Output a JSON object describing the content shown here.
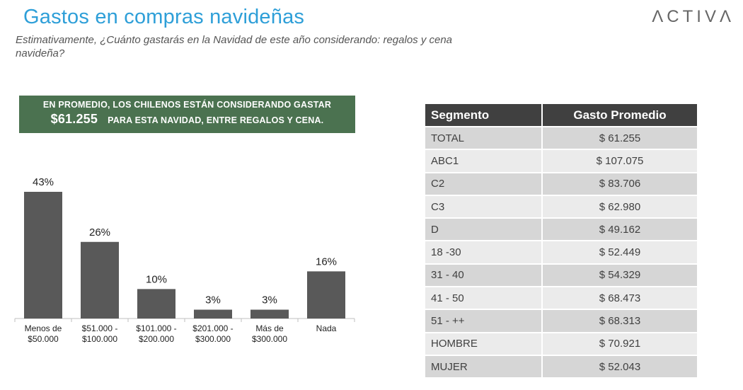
{
  "header": {
    "title": "Gastos en compras navideñas",
    "logo": "ΛCTIVΛ",
    "subtitle": "Estimativamente, ¿Cuánto gastarás en la Navidad de este año considerando: regalos y cena navideña?"
  },
  "banner": {
    "line1": "EN PROMEDIO, LOS CHILENOS ESTÁN CONSIDERANDO GASTAR",
    "amount": "$61.255",
    "line2": "PARA ESTA NAVIDAD, ENTRE REGALOS Y CENA."
  },
  "chart_data": {
    "type": "bar",
    "categories": [
      [
        "Menos de",
        "$50.000"
      ],
      [
        "$51.000 -",
        "$100.000"
      ],
      [
        "$101.000 -",
        "$200.000"
      ],
      [
        "$201.000 -",
        "$300.000"
      ],
      [
        "Más de",
        "$300.000"
      ],
      [
        "Nada"
      ]
    ],
    "values": [
      43,
      26,
      10,
      3,
      3,
      16
    ],
    "value_labels": [
      "43%",
      "26%",
      "10%",
      "3%",
      "3%",
      "16%"
    ],
    "unit": "%",
    "ylim": [
      0,
      43
    ],
    "bar_color": "#595959",
    "grid": false,
    "legend": "none"
  },
  "table": {
    "headers": [
      "Segmento",
      "Gasto Promedio"
    ],
    "rows": [
      [
        "TOTAL",
        "$ 61.255"
      ],
      [
        "ABC1",
        "$ 107.075"
      ],
      [
        "C2",
        "$ 83.706"
      ],
      [
        "C3",
        "$ 62.980"
      ],
      [
        "D",
        "$ 49.162"
      ],
      [
        "18 -30",
        "$ 52.449"
      ],
      [
        "31 - 40",
        "$ 54.329"
      ],
      [
        "41 - 50",
        "$ 68.473"
      ],
      [
        "51 - ++",
        "$ 68.313"
      ],
      [
        "HOMBRE",
        "$ 70.921"
      ],
      [
        "MUJER",
        "$ 52.043"
      ]
    ]
  },
  "colors": {
    "title": "#2e9fd8",
    "banner_bg": "#4b7250",
    "table_header": "#404040",
    "row_dark": "#d6d6d6",
    "row_light": "#ebebeb"
  }
}
